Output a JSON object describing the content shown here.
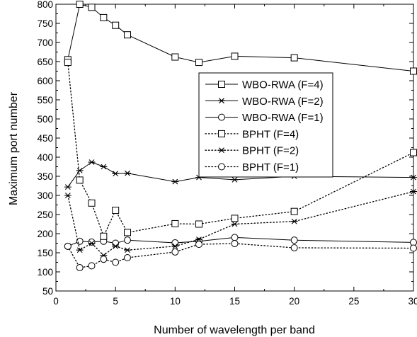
{
  "chart_data": {
    "type": "line",
    "xlabel": "Number of wavelength per band",
    "ylabel": "Maximum port number",
    "xlim": [
      0,
      30
    ],
    "ylim": [
      50,
      800
    ],
    "xticks": [
      0,
      5,
      10,
      15,
      20,
      25,
      30
    ],
    "yticks": [
      50,
      100,
      150,
      200,
      250,
      300,
      350,
      400,
      450,
      500,
      550,
      600,
      650,
      700,
      750,
      800
    ],
    "grid": false,
    "legend_position": "center-right",
    "series": [
      {
        "name": "WBO-RWA (F=4)",
        "marker": "square",
        "line": "solid",
        "x": [
          1,
          2,
          3,
          4,
          5,
          6,
          10,
          12,
          15,
          20,
          30
        ],
        "y": [
          655,
          800,
          792,
          765,
          745,
          720,
          662,
          648,
          664,
          660,
          625
        ]
      },
      {
        "name": "WBO-RWA (F=2)",
        "marker": "star",
        "line": "solid",
        "x": [
          1,
          2,
          3,
          4,
          5,
          6,
          10,
          12,
          15,
          20,
          30
        ],
        "y": [
          322,
          365,
          387,
          375,
          357,
          358,
          336,
          347,
          341,
          350,
          347
        ]
      },
      {
        "name": "WBO-RWA (F=1)",
        "marker": "circle",
        "line": "solid",
        "x": [
          1,
          2,
          3,
          4,
          5,
          6,
          10,
          12,
          15,
          20,
          30
        ],
        "y": [
          167,
          180,
          178,
          180,
          175,
          183,
          176,
          180,
          190,
          183,
          177
        ]
      },
      {
        "name": "BPHT (F=4)",
        "marker": "square",
        "line": "dotted",
        "x": [
          1,
          2,
          3,
          4,
          5,
          6,
          10,
          12,
          15,
          20,
          30
        ],
        "y": [
          648,
          340,
          280,
          193,
          261,
          203,
          226,
          225,
          240,
          258,
          412
        ]
      },
      {
        "name": "BPHT (F=2)",
        "marker": "star",
        "line": "dotted",
        "x": [
          1,
          2,
          3,
          4,
          5,
          6,
          10,
          12,
          15,
          20,
          30
        ],
        "y": [
          300,
          157,
          175,
          143,
          167,
          157,
          167,
          185,
          225,
          232,
          310
        ]
      },
      {
        "name": "BPHT (F=1)",
        "marker": "circle",
        "line": "dotted",
        "x": [
          1,
          2,
          3,
          4,
          5,
          6,
          10,
          12,
          15,
          20,
          30
        ],
        "y": [
          167,
          111,
          116,
          133,
          125,
          137,
          152,
          172,
          174,
          163,
          162
        ]
      }
    ]
  }
}
